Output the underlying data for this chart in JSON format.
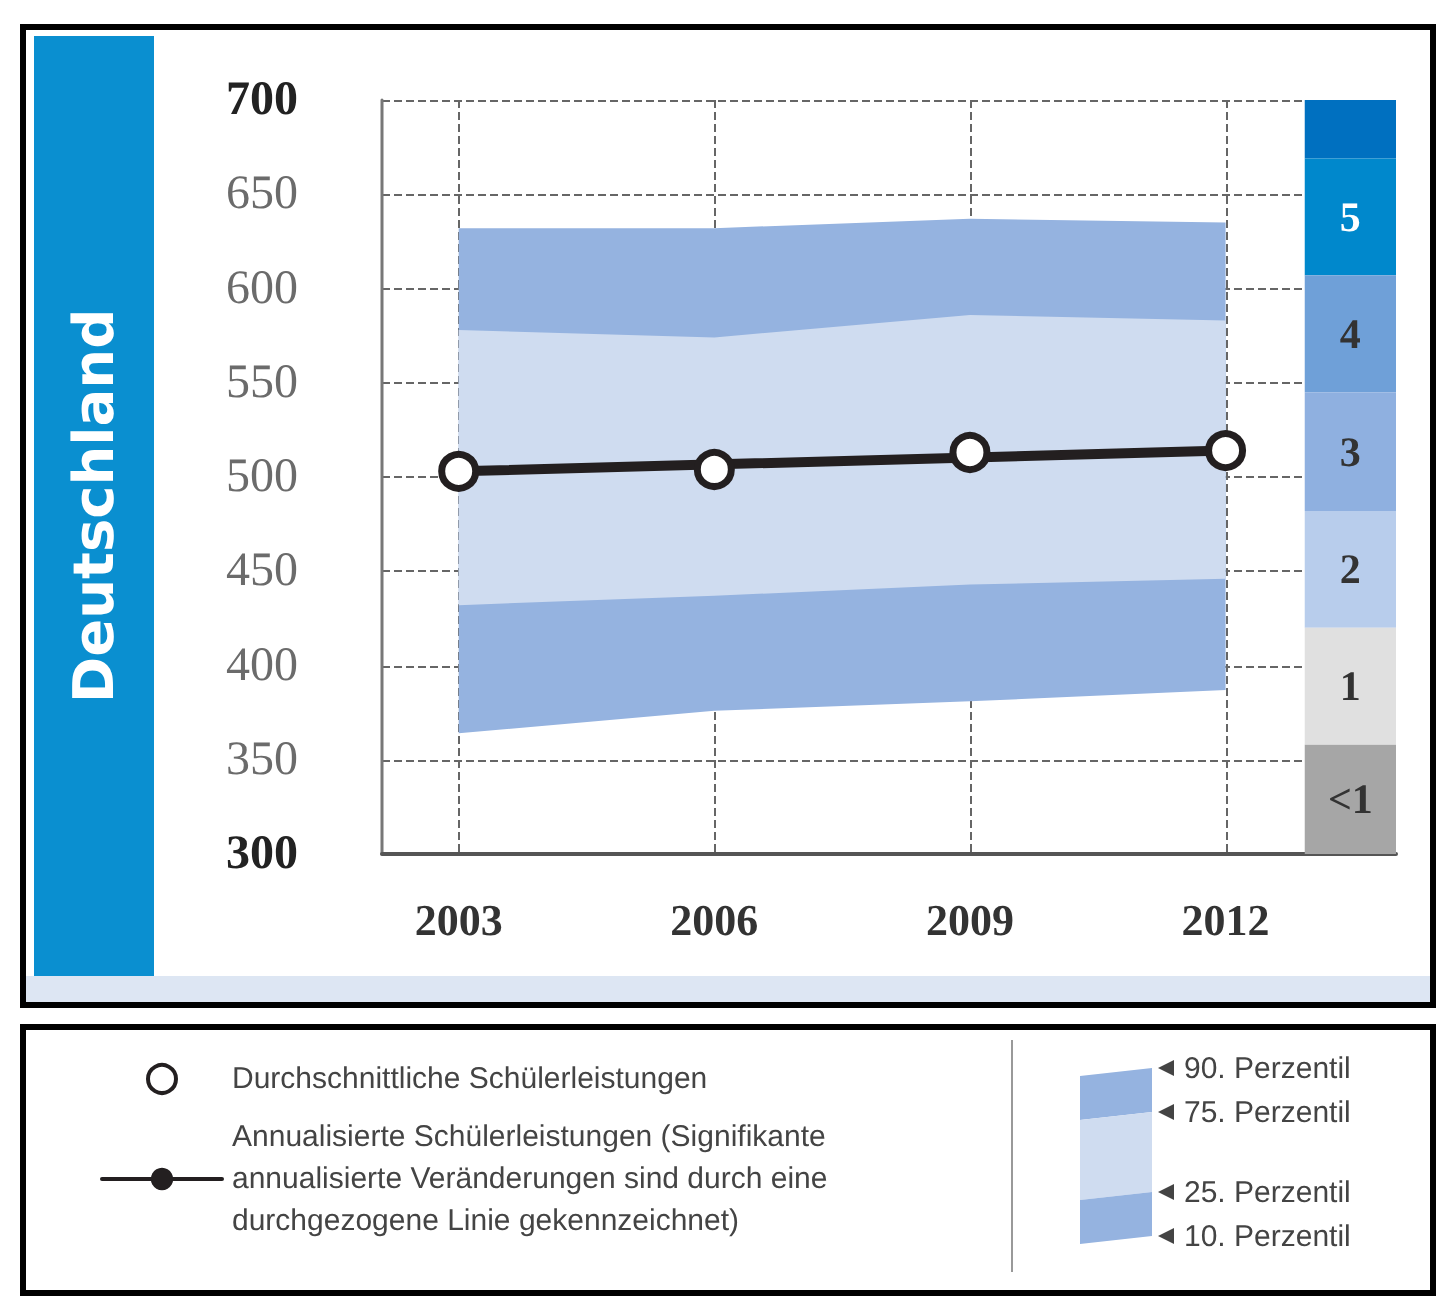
{
  "chart_data": {
    "type": "line",
    "title": "Deutschland",
    "xlim": [
      2002.1,
      2014
    ],
    "xticks": [
      2003,
      2006,
      2009,
      2012
    ],
    "ylim": [
      300,
      700
    ],
    "yticks": [
      300,
      350,
      400,
      450,
      500,
      550,
      600,
      650,
      700
    ],
    "series": [
      {
        "type": "line",
        "color": "#95b3e0",
        "x": [
          2003,
          2006,
          2009,
          2012
        ],
        "values": [
          null,
          null,
          null,
          null
        ],
        "lower": [
          364,
          376,
          381,
          387
        ],
        "upper": [
          632,
          632,
          637,
          635
        ]
      },
      {
        "type": "line",
        "color": "#cfdcf0",
        "x": [
          2003,
          2006,
          2009,
          2012
        ],
        "values": [
          null,
          null,
          null,
          null
        ],
        "lower": [
          432,
          437,
          443,
          446
        ],
        "upper": [
          578,
          574,
          586,
          583
        ]
      },
      {
        "type": "line",
        "name": "Annualisierte Schülerleistungen (Signifikante annualisierte Veränderungen sind durch eine durchgezogene Linie gekennzeichnet)",
        "color": "#231f20",
        "x": [
          2003,
          2012
        ],
        "values": [
          503,
          514
        ],
        "line_style": "solid",
        "marker": "none"
      },
      {
        "type": "scatter",
        "name": "Durchschnittliche Schülerleistungen",
        "color": "#231f20",
        "x": [
          2003,
          2006,
          2009,
          2012
        ],
        "values": [
          503,
          504,
          513,
          514
        ],
        "marker": "circle"
      }
    ],
    "bands": [
      {
        "axis": "y",
        "from": 669,
        "to": 700,
        "label": null,
        "color": "#0070c0"
      },
      {
        "axis": "y",
        "from": 607,
        "to": 669,
        "label": "5",
        "color": "#0088cc"
      },
      {
        "axis": "y",
        "from": 545,
        "to": 607,
        "label": "4",
        "color": "#6fa0d8"
      },
      {
        "axis": "y",
        "from": 482,
        "to": 545,
        "label": "3",
        "color": "#8fb0e0"
      },
      {
        "axis": "y",
        "from": 420,
        "to": 482,
        "label": "2",
        "color": "#b8cdec"
      },
      {
        "axis": "y",
        "from": 358,
        "to": 420,
        "label": "1",
        "color": "#e0e0e0"
      },
      {
        "axis": "y",
        "from": 300,
        "to": 358,
        "label": "<1",
        "color": "#a6a6a6"
      }
    ],
    "annotations": [
      "90. Perzentil",
      "75. Perzentil",
      "25. Perzentil",
      "10. Perzentil"
    ],
    "grid": true,
    "legend": "bottom left"
  }
}
